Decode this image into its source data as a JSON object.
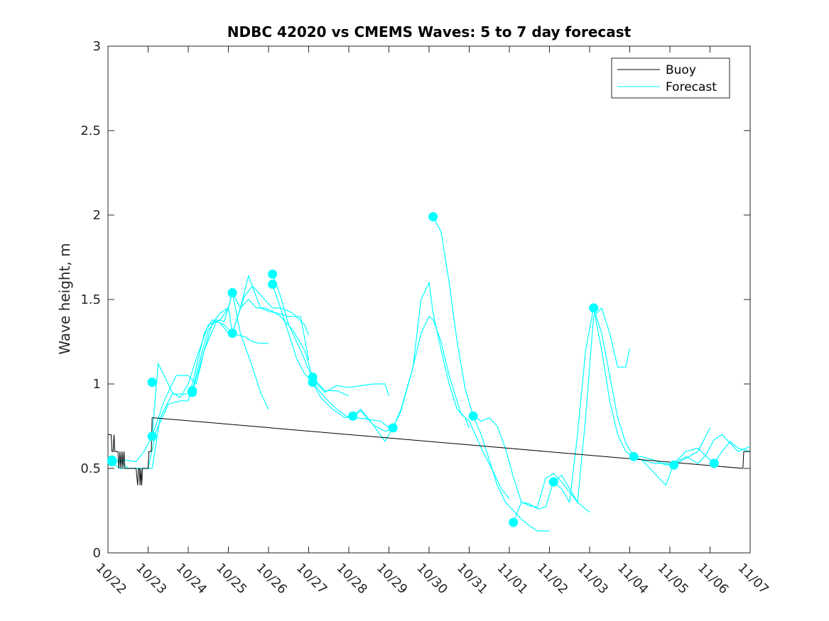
{
  "chart_data": {
    "type": "line",
    "title": "NDBC 42020 vs CMEMS Waves: 5 to 7 day forecast",
    "xlabel": "",
    "ylabel": "Wave height, m",
    "xlim": [
      0,
      16
    ],
    "ylim": [
      0,
      3
    ],
    "x_tick_labels": [
      "10/22",
      "10/23",
      "10/24",
      "10/25",
      "10/26",
      "10/27",
      "10/28",
      "10/29",
      "10/30",
      "10/31",
      "11/01",
      "11/02",
      "11/03",
      "11/04",
      "11/05",
      "11/06",
      "11/07"
    ],
    "y_ticks": [
      0,
      0.5,
      1,
      1.5,
      2,
      2.5,
      3
    ],
    "y_tick_labels": [
      "0",
      "0.5",
      "1",
      "1.5",
      "2",
      "2.5",
      "3"
    ],
    "x_unit_note": "x values are days, 0 = 10/22",
    "legend": {
      "placement": "top-right",
      "entries": [
        {
          "name": "Buoy",
          "color": "#000000"
        },
        {
          "name": "Forecast",
          "color": "#00ffff"
        }
      ]
    },
    "colors": {
      "buoy": "#000000",
      "forecast": "#00ffff"
    },
    "buoy": {
      "name": "Buoy",
      "x": [
        0.0,
        0.08,
        0.1,
        0.13,
        0.15,
        0.17,
        0.19,
        0.25,
        0.27,
        0.3,
        0.32,
        0.35,
        0.37,
        0.4,
        0.42,
        0.45,
        0.5,
        0.55,
        0.6,
        0.65,
        0.7,
        0.72,
        0.74,
        0.76,
        0.78,
        0.8,
        0.82,
        0.84,
        0.86,
        0.88,
        0.9,
        0.95,
        1.0,
        1.02,
        1.05,
        1.08,
        1.1,
        1.12,
        16.0,
        16.0,
        15.82,
        15.85,
        15.9,
        15.95,
        16.0
      ],
      "y": [
        0.7,
        0.7,
        0.6,
        0.6,
        0.7,
        0.6,
        0.6,
        0.6,
        0.5,
        0.6,
        0.5,
        0.6,
        0.5,
        0.6,
        0.5,
        0.5,
        0.5,
        0.5,
        0.5,
        0.5,
        0.5,
        0.45,
        0.4,
        0.5,
        0.5,
        0.4,
        0.5,
        0.4,
        0.5,
        0.5,
        0.5,
        0.5,
        0.5,
        0.6,
        0.6,
        0.6,
        0.8,
        0.8,
        0.5,
        0.5,
        0.5,
        0.6,
        0.6,
        0.6,
        0.6
      ]
    },
    "buoy_main": {
      "x": [
        0.0,
        0.08,
        0.1,
        0.13,
        0.15,
        0.17,
        0.19,
        0.25,
        0.27,
        0.3,
        0.32,
        0.35,
        0.37,
        0.4,
        0.42,
        0.45,
        0.5,
        0.6,
        0.7,
        0.72,
        0.74,
        0.76,
        0.78,
        0.8,
        0.82,
        0.84,
        0.86,
        0.88,
        0.9,
        0.95,
        1.0,
        1.02,
        1.05,
        1.08,
        1.1,
        1.12,
        15.82,
        15.84,
        15.9,
        16.0
      ],
      "y": [
        0.7,
        0.7,
        0.6,
        0.6,
        0.7,
        0.6,
        0.6,
        0.6,
        0.5,
        0.6,
        0.5,
        0.6,
        0.5,
        0.6,
        0.5,
        0.5,
        0.5,
        0.5,
        0.5,
        0.45,
        0.4,
        0.5,
        0.5,
        0.4,
        0.5,
        0.4,
        0.5,
        0.5,
        0.5,
        0.5,
        0.5,
        0.6,
        0.6,
        0.6,
        0.8,
        0.8,
        0.5,
        0.6,
        0.6,
        0.6
      ]
    },
    "forecast_series": [
      {
        "x": [
          0.1,
          0.3,
          0.5,
          0.7,
          0.9,
          1.0,
          1.2,
          1.5,
          1.8,
          2.0,
          2.2,
          2.4,
          2.6,
          2.8,
          3.0
        ],
        "y": [
          0.55,
          0.55,
          0.5,
          0.5,
          0.5,
          0.5,
          0.72,
          0.88,
          0.9,
          0.9,
          1.1,
          1.3,
          1.38,
          1.36,
          1.3
        ]
      },
      {
        "x": [
          0.1,
          0.3,
          0.6,
          0.9,
          1.1,
          1.3,
          1.6,
          1.9,
          2.1,
          2.4,
          2.7,
          2.9,
          3.1,
          3.4,
          3.6,
          3.8,
          4.0
        ],
        "y": [
          0.53,
          0.5,
          0.5,
          0.5,
          0.5,
          0.8,
          0.94,
          0.94,
          0.95,
          1.2,
          1.37,
          1.35,
          1.3,
          1.28,
          1.25,
          1.24,
          1.24
        ]
      },
      {
        "x": [
          0.1,
          0.4,
          0.7,
          0.9,
          1.1,
          1.25,
          1.4,
          1.6,
          1.8,
          2.0,
          2.2,
          2.5,
          2.8,
          3.0,
          3.1,
          3.3,
          3.6,
          3.8,
          4.0
        ],
        "y": [
          0.53,
          0.55,
          0.54,
          0.6,
          0.69,
          1.12,
          1.05,
          0.95,
          0.92,
          1.0,
          1.15,
          1.35,
          1.38,
          1.45,
          1.54,
          1.3,
          1.1,
          0.95,
          0.85
        ]
      },
      {
        "x": [
          1.1,
          1.4,
          1.7,
          2.0,
          2.2,
          2.4,
          2.6,
          2.8,
          3.0,
          3.1,
          3.4,
          3.6,
          3.9,
          4.1,
          4.3,
          4.6,
          4.9,
          5.0
        ],
        "y": [
          0.69,
          0.9,
          1.05,
          1.05,
          1.0,
          1.2,
          1.36,
          1.42,
          1.45,
          1.3,
          1.52,
          1.58,
          1.5,
          1.45,
          1.45,
          1.42,
          1.35,
          1.29
        ]
      },
      {
        "x": [
          2.1,
          2.3,
          2.5,
          2.7,
          2.9,
          3.1,
          3.3,
          3.5,
          3.8,
          4.0,
          4.2,
          4.5,
          4.8,
          5.0
        ],
        "y": [
          0.96,
          1.15,
          1.32,
          1.38,
          1.37,
          1.54,
          1.45,
          1.64,
          1.45,
          1.43,
          1.42,
          1.4,
          1.4,
          1.14
        ]
      },
      {
        "x": [
          3.1,
          3.3,
          3.5,
          3.7,
          3.9,
          4.1,
          4.3,
          4.6,
          4.9,
          5.1,
          5.4,
          5.7,
          6.0
        ],
        "y": [
          1.3,
          1.45,
          1.5,
          1.45,
          1.45,
          1.43,
          1.4,
          1.32,
          1.2,
          1.04,
          0.96,
          0.96,
          0.93
        ]
      },
      {
        "x": [
          4.1,
          4.3,
          4.5,
          4.7,
          4.9,
          5.1,
          5.4,
          5.7,
          6.0,
          6.2,
          6.5,
          6.8,
          7.0
        ],
        "y": [
          1.59,
          1.45,
          1.3,
          1.15,
          1.06,
          1.01,
          0.92,
          0.85,
          0.8,
          0.8,
          0.79,
          0.78,
          0.74
        ]
      },
      {
        "x": [
          4.1,
          4.3,
          4.5,
          4.8,
          5.1,
          5.4,
          5.7,
          6.0,
          6.3,
          6.6,
          6.9,
          7.0
        ],
        "y": [
          1.65,
          1.52,
          1.35,
          1.2,
          1.03,
          0.95,
          0.99,
          0.98,
          0.99,
          1.0,
          1.0,
          0.93
        ]
      },
      {
        "x": [
          5.1,
          5.3,
          5.6,
          5.9,
          6.1,
          6.3,
          6.6,
          6.9,
          7.1
        ],
        "y": [
          1.01,
          0.92,
          0.85,
          0.8,
          0.81,
          0.84,
          0.76,
          0.72,
          0.73
        ]
      },
      {
        "x": [
          6.1,
          6.3,
          6.6,
          6.9,
          7.1,
          7.3,
          7.6,
          7.8,
          8.0,
          8.1,
          8.3,
          8.5,
          8.7,
          8.9,
          9.0
        ],
        "y": [
          0.81,
          0.85,
          0.76,
          0.66,
          0.74,
          0.84,
          1.1,
          1.5,
          1.6,
          1.42,
          1.2,
          1.0,
          0.85,
          0.8,
          0.74
        ]
      },
      {
        "x": [
          7.1,
          7.3,
          7.6,
          7.8,
          8.0,
          8.1,
          8.3,
          8.5,
          8.8,
          9.0,
          9.3,
          9.6,
          9.8,
          10.0
        ],
        "y": [
          0.74,
          0.85,
          1.1,
          1.3,
          1.4,
          1.38,
          1.25,
          1.05,
          0.82,
          0.78,
          0.62,
          0.48,
          0.38,
          0.32
        ]
      },
      {
        "x": [
          8.1,
          8.3,
          8.5,
          8.7,
          8.9,
          9.1,
          9.3,
          9.5,
          9.7,
          9.9,
          10.1,
          10.3,
          10.5,
          10.7,
          11.0
        ],
        "y": [
          1.99,
          1.9,
          1.6,
          1.25,
          0.97,
          0.81,
          0.7,
          0.55,
          0.4,
          0.3,
          0.25,
          0.2,
          0.16,
          0.13,
          0.13
        ]
      },
      {
        "x": [
          9.1,
          9.3,
          9.5,
          9.7,
          9.9,
          10.1,
          10.3,
          10.5,
          10.7,
          10.9,
          11.1,
          11.3,
          11.5,
          11.7,
          12.0
        ],
        "y": [
          0.81,
          0.78,
          0.8,
          0.75,
          0.62,
          0.45,
          0.3,
          0.28,
          0.27,
          0.44,
          0.47,
          0.42,
          0.36,
          0.3,
          0.24
        ]
      },
      {
        "x": [
          10.1,
          10.3,
          10.5,
          10.7,
          10.9,
          11.1,
          11.3,
          11.5,
          11.7,
          11.9,
          12.1,
          12.3,
          12.5,
          12.7,
          12.9,
          13.0
        ],
        "y": [
          0.18,
          0.3,
          0.29,
          0.26,
          0.27,
          0.42,
          0.46,
          0.38,
          0.3,
          0.8,
          1.4,
          1.45,
          1.3,
          1.1,
          1.1,
          1.21
        ]
      },
      {
        "x": [
          11.1,
          11.3,
          11.5,
          11.7,
          11.9,
          12.1,
          12.3,
          12.5,
          12.7,
          12.9,
          13.1,
          13.3,
          13.6,
          13.9,
          14.1,
          14.4,
          14.7,
          15.0
        ],
        "y": [
          0.42,
          0.38,
          0.3,
          0.7,
          1.2,
          1.45,
          1.3,
          1.05,
          0.8,
          0.65,
          0.57,
          0.55,
          0.53,
          0.53,
          0.52,
          0.56,
          0.6,
          0.74
        ]
      },
      {
        "x": [
          12.1,
          12.3,
          12.5,
          12.7,
          12.9,
          13.1,
          13.3,
          13.6,
          13.9,
          14.1,
          14.4,
          14.7,
          14.9,
          15.1,
          15.3,
          15.5,
          15.7,
          16.0
        ],
        "y": [
          1.45,
          1.2,
          0.9,
          0.7,
          0.6,
          0.57,
          0.57,
          0.55,
          0.52,
          0.53,
          0.57,
          0.53,
          0.58,
          0.67,
          0.7,
          0.65,
          0.6,
          0.63
        ]
      },
      {
        "x": [
          13.1,
          13.3,
          13.5,
          13.7,
          13.9,
          14.1,
          14.4,
          14.7,
          15.0,
          15.1,
          15.3,
          15.5,
          15.7,
          16.0
        ],
        "y": [
          0.57,
          0.55,
          0.5,
          0.45,
          0.4,
          0.53,
          0.6,
          0.62,
          0.55,
          0.53,
          0.6,
          0.66,
          0.62,
          0.6
        ]
      }
    ],
    "forecast_start_points": {
      "x": [
        0.1,
        0.1,
        1.1,
        1.1,
        2.1,
        2.1,
        3.1,
        3.1,
        4.1,
        4.1,
        5.1,
        5.1,
        6.1,
        7.1,
        8.1,
        9.1,
        10.1,
        11.1,
        12.1,
        13.1,
        14.1,
        15.1
      ],
      "y": [
        0.54,
        0.55,
        1.01,
        0.69,
        0.96,
        0.95,
        1.54,
        1.3,
        1.65,
        1.59,
        1.04,
        1.01,
        0.81,
        0.74,
        1.99,
        0.81,
        0.18,
        0.42,
        1.45,
        0.57,
        0.52,
        0.53
      ]
    }
  }
}
